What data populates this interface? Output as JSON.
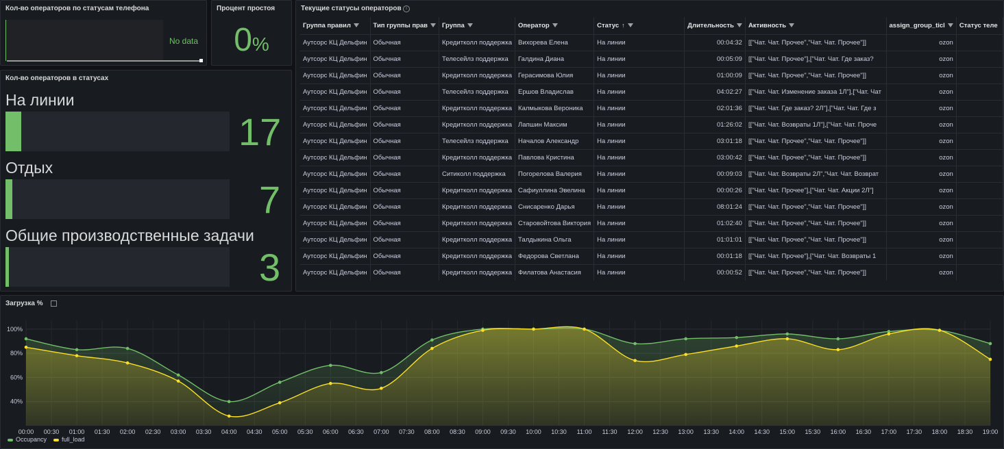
{
  "phone_status": {
    "title": "Кол-во операторов по статусам телефона",
    "no_data": "No data"
  },
  "idle": {
    "title": "Процент простоя",
    "value": "0",
    "unit": "%"
  },
  "statuses": {
    "title": "Кол-во операторов в статусах",
    "items": [
      {
        "label": "На линии",
        "value": "17",
        "fraction": 0.07
      },
      {
        "label": "Отдых",
        "value": "7",
        "fraction": 0.03
      },
      {
        "label": "Общие производственные задачи",
        "value": "3",
        "fraction": 0.015
      }
    ]
  },
  "table": {
    "title": "Текущие статусы операторов",
    "columns": [
      "Группа правил",
      "Тип группы прав",
      "Группа",
      "Оператор",
      "Статус",
      "Длительность",
      "Активность",
      "assign_group_ticl",
      "Статус теле"
    ],
    "sorted_column": 4,
    "rows": [
      [
        "Аутсорс КЦ Дельфин",
        "Обычная",
        "Кредитколл поддержка",
        "Вихорева Елена",
        "На линии",
        "00:04:32",
        "[[\"Чат. Чат. Прочее\",\"Чат. Чат. Прочее\"]]",
        "ozon",
        ""
      ],
      [
        "Аутсорс КЦ Дельфин",
        "Обычная",
        "Телесейлз поддержка",
        "Галдина Диана",
        "На линии",
        "00:05:09",
        "[[\"Чат. Чат. Прочее\"],[\"Чат. Чат. Где заказ?",
        "ozon",
        ""
      ],
      [
        "Аутсорс КЦ Дельфин",
        "Обычная",
        "Кредитколл поддержка",
        "Герасимова Юлия",
        "На линии",
        "01:00:09",
        "[[\"Чат. Чат. Прочее\",\"Чат. Чат. Прочее\"]]",
        "ozon",
        ""
      ],
      [
        "Аутсорс КЦ Дельфин",
        "Обычная",
        "Телесейлз поддержка",
        "Ершов Владислав",
        "На линии",
        "04:02:27",
        "[[\"Чат. Чат. Изменение заказа 1Л\"],[\"Чат. Чат",
        "ozon",
        ""
      ],
      [
        "Аутсорс КЦ Дельфин",
        "Обычная",
        "Кредитколл поддержка",
        "Калмыкова Вероника",
        "На линии",
        "02:01:36",
        "[[\"Чат. Чат. Где заказ? 2Л\"],[\"Чат. Чат. Где з",
        "ozon",
        ""
      ],
      [
        "Аутсорс КЦ Дельфин",
        "Обычная",
        "Кредитколл поддержка",
        "Лапшин Максим",
        "На линии",
        "01:26:02",
        "[[\"Чат. Чат. Возвраты 1Л\"],[\"Чат. Чат. Проче",
        "ozon",
        ""
      ],
      [
        "Аутсорс КЦ Дельфин",
        "Обычная",
        "Телесейлз поддержка",
        "Началов Александр",
        "На линии",
        "03:01:18",
        "[[\"Чат. Чат. Прочее\",\"Чат. Чат. Прочее\"]]",
        "ozon",
        ""
      ],
      [
        "Аутсорс КЦ Дельфин",
        "Обычная",
        "Кредитколл поддержка",
        "Павлова Кристина",
        "На линии",
        "03:00:42",
        "[[\"Чат. Чат. Прочее\",\"Чат. Чат. Прочее\"]]",
        "ozon",
        ""
      ],
      [
        "Аутсорс КЦ Дельфин",
        "Обычная",
        "Ситиколл поддержка",
        "Погорелова Валерия",
        "На линии",
        "00:09:03",
        "[[\"Чат. Чат. Возвраты 2Л\",\"Чат. Чат. Возврат",
        "ozon",
        ""
      ],
      [
        "Аутсорс КЦ Дельфин",
        "Обычная",
        "Кредитколл поддержка",
        "Сафиуллина Эвелина",
        "На линии",
        "00:00:26",
        "[[\"Чат. Чат. Прочее\"],[\"Чат. Чат. Акции 2Л\"]",
        "ozon",
        ""
      ],
      [
        "Аутсорс КЦ Дельфин",
        "Обычная",
        "Кредитколл поддержка",
        "Снисаренко Дарья",
        "На линии",
        "08:01:24",
        "[[\"Чат. Чат. Прочее\",\"Чат. Чат. Прочее\"]]",
        "ozon",
        ""
      ],
      [
        "Аутсорс КЦ Дельфин",
        "Обычная",
        "Кредитколл поддержка",
        "Старовойтова Виктория",
        "На линии",
        "01:02:40",
        "[[\"Чат. Чат. Прочее\",\"Чат. Чат. Прочее\"]]",
        "ozon",
        ""
      ],
      [
        "Аутсорс КЦ Дельфин",
        "Обычная",
        "Кредитколл поддержка",
        "Талдыкина Ольга",
        "На линии",
        "01:01:01",
        "[[\"Чат. Чат. Прочее\",\"Чат. Чат. Прочее\"]]",
        "ozon",
        ""
      ],
      [
        "Аутсорс КЦ Дельфин",
        "Обычная",
        "Кредитколл поддержка",
        "Федорова Светлана",
        "На линии",
        "00:01:18",
        "[[\"Чат. Чат. Прочее\"],[\"Чат. Чат. Возвраты 1",
        "ozon",
        ""
      ],
      [
        "Аутсорс КЦ Дельфин",
        "Обычная",
        "Кредитколл поддержка",
        "Филатова Анастасия",
        "На линии",
        "00:00:52",
        "[[\"Чат. Чат. Прочее\",\"Чат. Чат. Прочее\"]]",
        "ozon",
        ""
      ]
    ]
  },
  "load_panel": {
    "title": "Загрузка %"
  },
  "colors": {
    "green": "#73bf69",
    "yellow": "#fade2a",
    "orange": "#e0a02a",
    "panel": "#181b1f",
    "background": "#111217"
  },
  "chart_data": {
    "type": "line",
    "x": [
      "00:00",
      "01:00",
      "02:00",
      "03:00",
      "04:00",
      "05:00",
      "06:00",
      "07:00",
      "08:00",
      "09:00",
      "10:00",
      "11:00",
      "12:00",
      "13:00",
      "14:00",
      "15:00",
      "16:00",
      "17:00",
      "18:00",
      "19:00"
    ],
    "x_ticks": [
      "00:00",
      "00:30",
      "01:00",
      "01:30",
      "02:00",
      "02:30",
      "03:00",
      "03:30",
      "04:00",
      "04:30",
      "05:00",
      "05:30",
      "06:00",
      "06:30",
      "07:00",
      "07:30",
      "08:00",
      "08:30",
      "09:00",
      "09:30",
      "10:00",
      "10:30",
      "11:00",
      "11:30",
      "12:00",
      "12:30",
      "13:00",
      "13:30",
      "14:00",
      "14:30",
      "15:00",
      "15:30",
      "16:00",
      "16:30",
      "17:00",
      "17:30",
      "18:00",
      "18:30",
      "19:00"
    ],
    "y_ticks": [
      "40%",
      "60%",
      "80%",
      "100%"
    ],
    "ylim": [
      20,
      105
    ],
    "series": [
      {
        "name": "Occupancy",
        "color": "#73bf69",
        "values": [
          92,
          83,
          84,
          62,
          40,
          56,
          70,
          64,
          91,
          100,
          100,
          100,
          88,
          92,
          93,
          96,
          92,
          98,
          99,
          88
        ]
      },
      {
        "name": "full_load",
        "color": "#fade2a",
        "values": [
          85,
          78,
          72,
          57,
          28,
          39,
          55,
          51,
          84,
          99,
          100,
          100,
          74,
          79,
          86,
          92,
          83,
          96,
          99,
          75
        ]
      }
    ],
    "grid": true,
    "legend": "bottom-left"
  }
}
